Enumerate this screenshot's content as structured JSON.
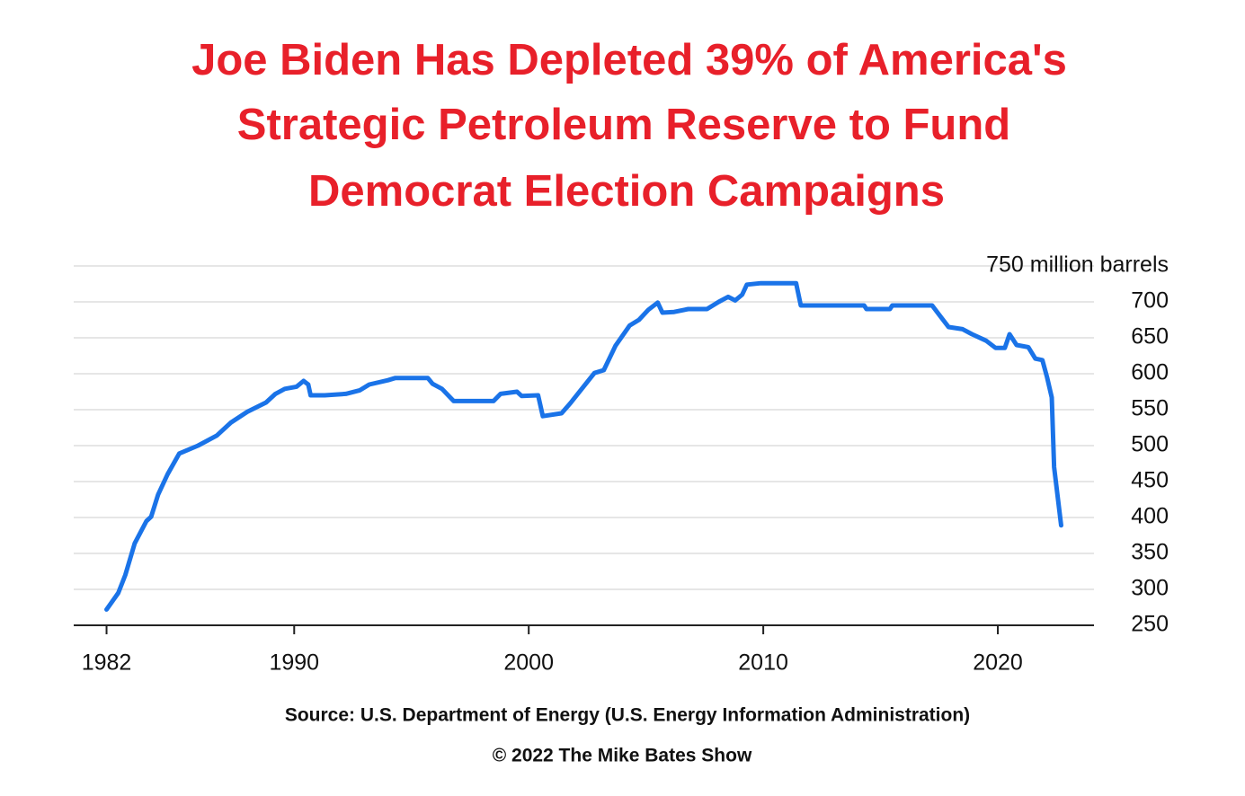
{
  "chart_data": {
    "type": "line",
    "title": [
      "Joe Biden Has Depleted 39% of America's",
      "Strategic Petroleum Reserve to Fund",
      "Democrat Election Campaigns"
    ],
    "source": "Source: U.S. Department of Energy (U.S. Energy Information Administration)",
    "copyright": "© 2022 The Mike Bates Show",
    "x": [
      1982.0,
      1982.5,
      1982.8,
      1983.2,
      1983.7,
      1983.9,
      1984.2,
      1984.6,
      1985.1,
      1985.9,
      1986.7,
      1987.3,
      1988.0,
      1988.8,
      1989.2,
      1989.6,
      1990.1,
      1990.4,
      1990.6,
      1990.7,
      1991.3,
      1992.2,
      1992.8,
      1993.2,
      1994.0,
      1994.3,
      1995.7,
      1995.9,
      1996.3,
      1996.8,
      1998.5,
      1998.8,
      1999.5,
      1999.7,
      2000.4,
      2000.6,
      2001.4,
      2001.8,
      2002.8,
      2003.2,
      2003.7,
      2004.3,
      2004.7,
      2005.1,
      2005.5,
      2005.7,
      2006.2,
      2006.8,
      2007.6,
      2008.1,
      2008.5,
      2008.8,
      2009.1,
      2009.3,
      2009.9,
      2011.4,
      2011.6,
      2014.3,
      2014.4,
      2015.4,
      2015.5,
      2017.2,
      2017.5,
      2017.9,
      2018.5,
      2018.9,
      2019.5,
      2019.9,
      2020.3,
      2020.5,
      2020.8,
      2021.3,
      2021.6,
      2021.9,
      2022.1,
      2022.3,
      2022.4,
      2022.7
    ],
    "series": [
      {
        "name": "Strategic Petroleum Reserve",
        "color": "#1a73e8",
        "values": [
          272,
          295,
          320,
          364,
          395,
          401,
          432,
          460,
          489,
          500,
          514,
          532,
          547,
          560,
          572,
          579,
          582,
          590,
          585,
          570,
          570,
          572,
          577,
          585,
          591,
          594,
          594,
          586,
          579,
          562,
          562,
          572,
          575,
          569,
          570,
          541,
          545,
          560,
          601,
          605,
          639,
          667,
          675,
          689,
          699,
          685,
          686,
          690,
          690,
          700,
          707,
          702,
          710,
          724,
          726,
          726,
          695,
          695,
          690,
          690,
          695,
          695,
          682,
          665,
          662,
          655,
          646,
          636,
          636,
          655,
          640,
          637,
          621,
          619,
          595,
          567,
          470,
          389
        ]
      }
    ],
    "xlim": [
      1980.6,
      2024.1
    ],
    "xticks": [
      1982,
      1990,
      2000,
      2010,
      2020
    ],
    "ylim": [
      250,
      750
    ],
    "yticks": [
      250,
      300,
      350,
      400,
      450,
      500,
      550,
      600,
      650,
      700,
      {
        "value": 750,
        "label": "750 million barrels"
      }
    ],
    "grid": true
  }
}
